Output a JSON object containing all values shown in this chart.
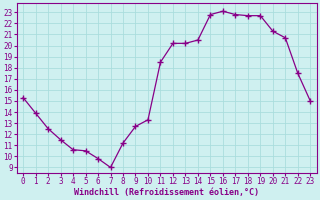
{
  "x": [
    0,
    1,
    2,
    3,
    4,
    5,
    6,
    7,
    8,
    9,
    10,
    11,
    12,
    13,
    14,
    15,
    16,
    17,
    18,
    19,
    20,
    21,
    22,
    23
  ],
  "y": [
    15.3,
    13.9,
    12.5,
    11.5,
    10.6,
    10.5,
    9.8,
    9.0,
    11.2,
    12.7,
    13.3,
    18.5,
    20.2,
    20.2,
    20.5,
    22.8,
    23.1,
    22.8,
    22.7,
    22.7,
    21.3,
    20.7,
    17.5,
    15.0
  ],
  "line_color": "#880088",
  "marker": "+",
  "marker_size": 4,
  "marker_lw": 1.0,
  "bg_color": "#cff0f0",
  "grid_color": "#aadddd",
  "xlabel": "Windchill (Refroidissement éolien,°C)",
  "ylabel_ticks": [
    9,
    10,
    11,
    12,
    13,
    14,
    15,
    16,
    17,
    18,
    19,
    20,
    21,
    22,
    23
  ],
  "xlim": [
    -0.5,
    23.5
  ],
  "ylim": [
    8.5,
    23.8
  ],
  "label_fontsize": 6.0,
  "tick_fontsize": 5.5,
  "axis_color": "#880088",
  "spine_color": "#880088",
  "linewidth": 0.9
}
